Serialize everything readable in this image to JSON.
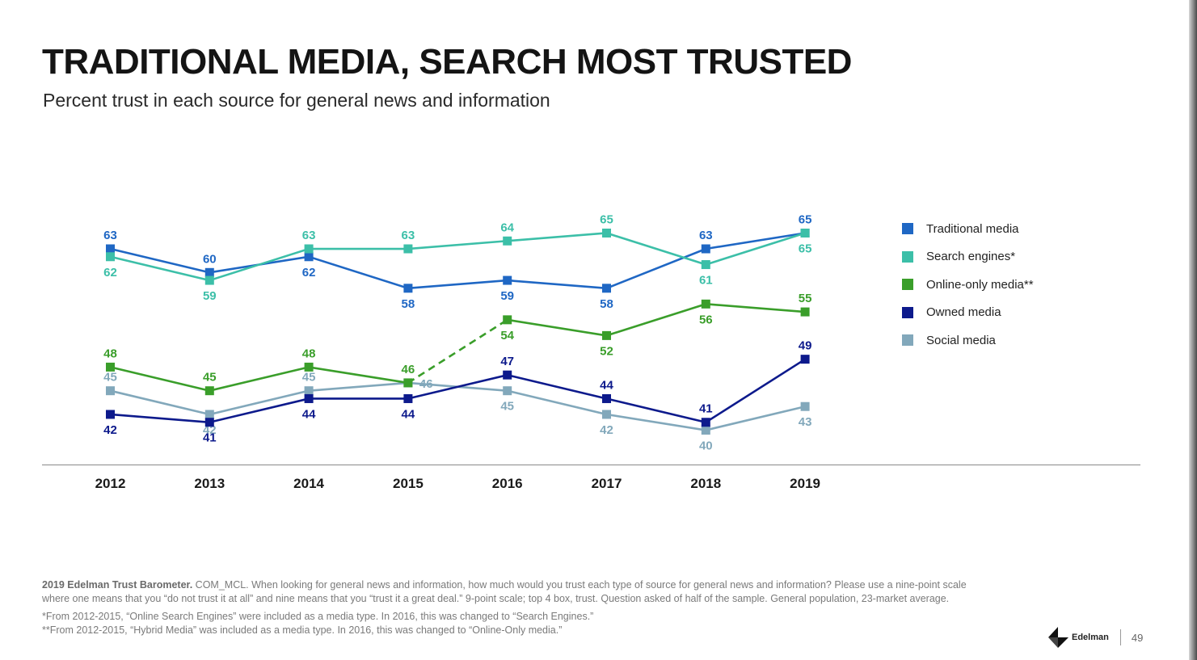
{
  "title": "TRADITIONAL MEDIA, SEARCH MOST TRUSTED",
  "subtitle": "Percent trust in each source for general news and information",
  "chart_data": {
    "type": "line",
    "categories": [
      "2012",
      "2013",
      "2014",
      "2015",
      "2016",
      "2017",
      "2018",
      "2019"
    ],
    "ylim": [
      38,
      67
    ],
    "grid": false,
    "legend_position": "right",
    "series": [
      {
        "name": "Traditional media",
        "color": "#1f67c4",
        "values": [
          63,
          60,
          62,
          58,
          59,
          58,
          63,
          65
        ]
      },
      {
        "name": "Search engines*",
        "color": "#3cbfa8",
        "values": [
          62,
          59,
          63,
          63,
          64,
          65,
          61,
          65
        ]
      },
      {
        "name": "Online-only media**",
        "color": "#3a9e2a",
        "values": [
          48,
          45,
          48,
          46,
          54,
          52,
          56,
          55
        ]
      },
      {
        "name": "Owned media",
        "color": "#0d1a8c",
        "values": [
          42,
          41,
          44,
          44,
          47,
          44,
          41,
          49
        ]
      },
      {
        "name": "Social media",
        "color": "#82a8bb",
        "values": [
          45,
          42,
          45,
          46,
          45,
          42,
          40,
          43
        ]
      }
    ]
  },
  "footnote": {
    "source_bold": "2019 Edelman Trust Barometer.",
    "source_text": " COM_MCL. When looking for general news and information, how much would you trust each type of source for general news and information? Please use a nine-point scale where one means that you “do not trust it at all” and nine means that you “trust it a great deal.” 9-point scale; top 4 box, trust. Question asked of half of the sample. General population, 23-market average.",
    "note1": "*From 2012-2015, “Online Search Engines” were included as a media type. In 2016, this was changed to “Search Engines.”",
    "note2": "**From 2012-2015, “Hybrid Media” was included as a media type. In 2016, this was changed to “Online-Only media.”"
  },
  "brand": {
    "name": "Edelman",
    "page": "49"
  }
}
